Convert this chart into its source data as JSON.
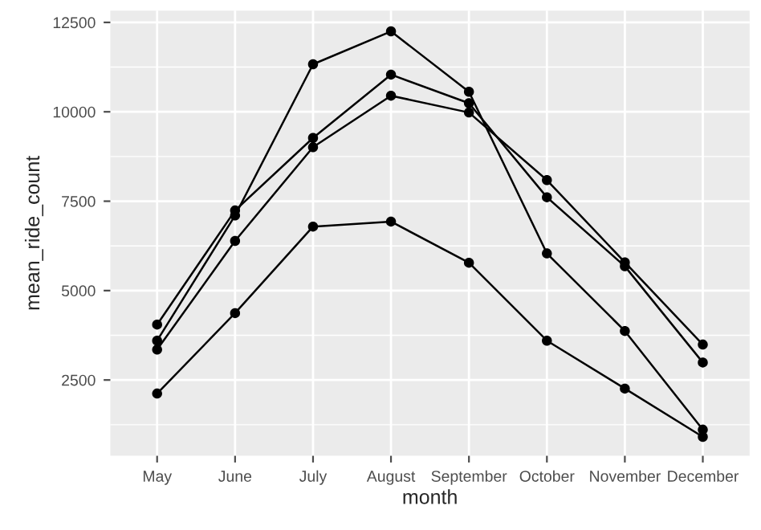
{
  "chart_data": {
    "type": "line",
    "xlabel": "month",
    "ylabel": "mean_ride_count",
    "categories": [
      "May",
      "June",
      "July",
      "August",
      "September",
      "October",
      "November",
      "December"
    ],
    "series": [
      {
        "color": "#000000",
        "values": [
          3600,
          7100,
          11330,
          12250,
          10560,
          6040,
          3870,
          1110
        ]
      },
      {
        "color": "#000000",
        "values": [
          4050,
          7240,
          9270,
          11040,
          10240,
          7610,
          5680,
          2990
        ]
      },
      {
        "color": "#000000",
        "values": [
          3350,
          6390,
          9010,
          10450,
          9980,
          8090,
          5790,
          3490
        ]
      },
      {
        "color": "#000000",
        "values": [
          2120,
          4370,
          6790,
          6930,
          5780,
          3600,
          2260,
          910
        ]
      }
    ],
    "ylim": [
      380,
      12830
    ],
    "yticks": [
      2500,
      5000,
      7500,
      10000,
      12500
    ],
    "grid": true,
    "marker": "circle",
    "line_style": "solid"
  }
}
